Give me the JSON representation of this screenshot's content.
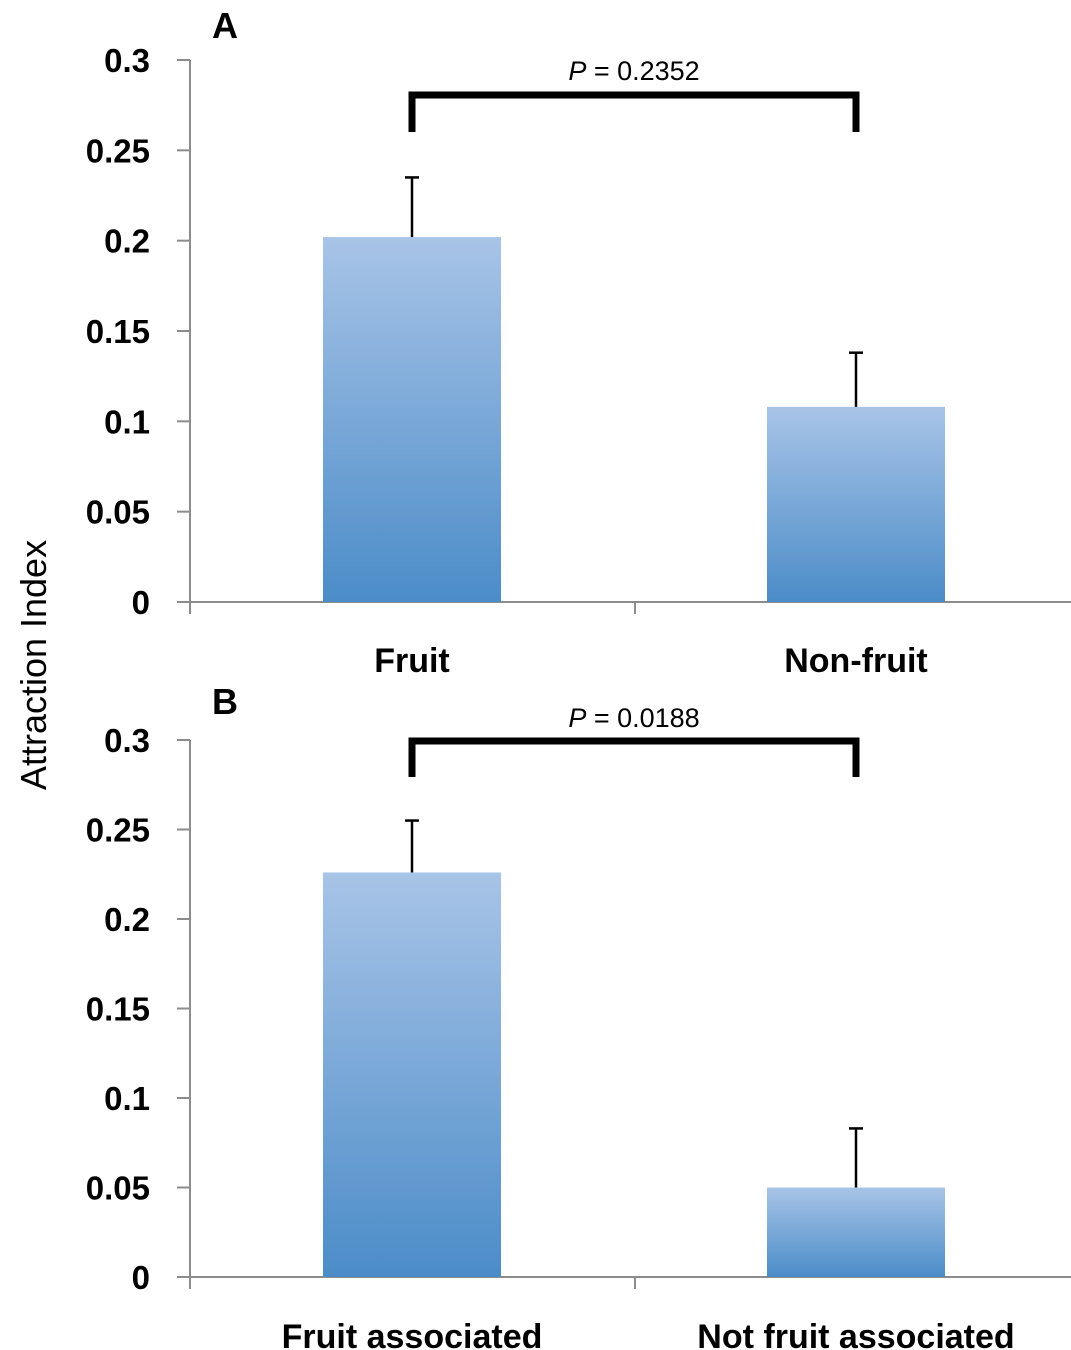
{
  "ylabel": "Attraction Index",
  "colors": {
    "bar_top": "#a8c4e7",
    "bar_bottom": "#4b8cc8",
    "axis": "#8c8c8c",
    "bracket": "#000000"
  },
  "chart_data": [
    {
      "type": "bar",
      "panel": "A",
      "categories": [
        "Fruit",
        "Non-fruit"
      ],
      "values": [
        0.202,
        0.108
      ],
      "error_upper": [
        0.235,
        0.138
      ],
      "ylim": [
        0,
        0.3
      ],
      "yticks": [
        "0",
        "0.05",
        "0.1",
        "0.15",
        "0.2",
        "0.25",
        "0.3"
      ],
      "ytick_values": [
        0,
        0.05,
        0.1,
        0.15,
        0.2,
        0.25,
        0.3
      ],
      "comparison": {
        "italic": "P",
        "rest": " = 0.2352"
      },
      "grid": false
    },
    {
      "type": "bar",
      "panel": "B",
      "categories": [
        "Fruit associated",
        "Not fruit associated"
      ],
      "values": [
        0.226,
        0.05
      ],
      "error_upper": [
        0.255,
        0.083
      ],
      "ylim": [
        0,
        0.3
      ],
      "yticks": [
        "0",
        "0.05",
        "0.1",
        "0.15",
        "0.2",
        "0.25",
        "0.3"
      ],
      "ytick_values": [
        0,
        0.05,
        0.1,
        0.15,
        0.2,
        0.25,
        0.3
      ],
      "comparison": {
        "italic": "P",
        "rest": " = 0.0188"
      },
      "grid": false
    }
  ]
}
